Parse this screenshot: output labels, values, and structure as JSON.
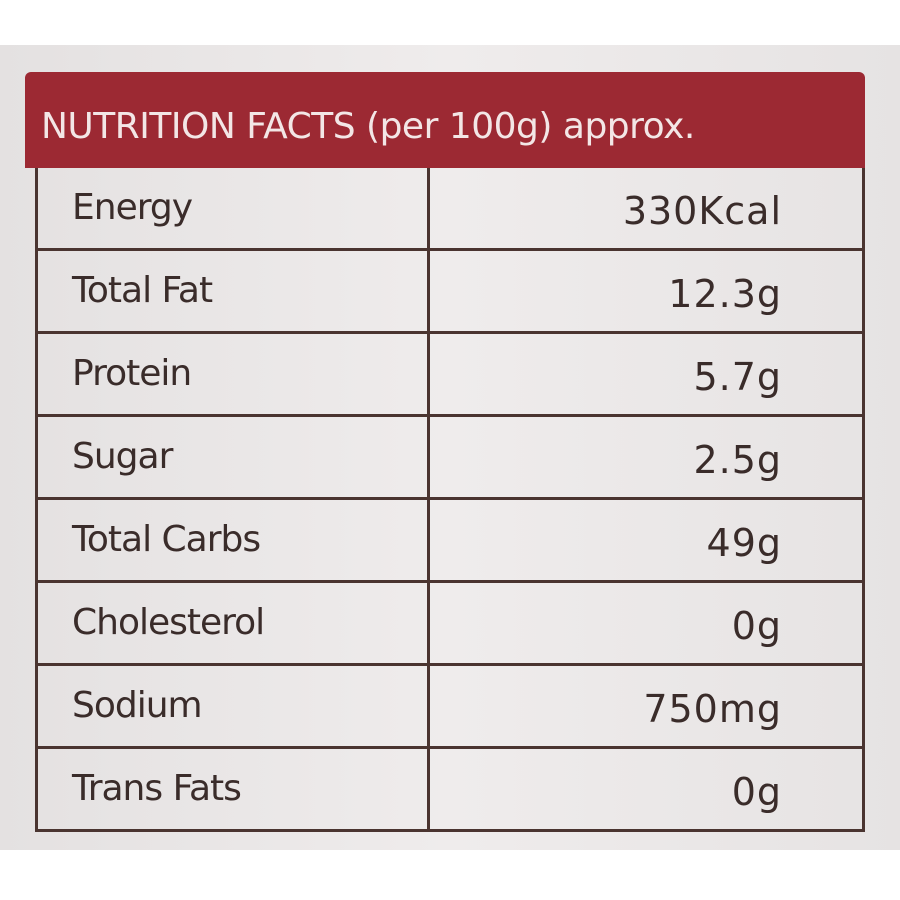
{
  "table": {
    "title": "NUTRITION FACTS (per 100g) approx.",
    "rows": [
      [
        "Energy",
        "330Kcal"
      ],
      [
        "Total Fat",
        "12.3g"
      ],
      [
        "Protein",
        "5.7g"
      ],
      [
        "Sugar",
        "2.5g"
      ],
      [
        "Total Carbs",
        "49g"
      ],
      [
        "Cholesterol",
        "0g"
      ],
      [
        "Sodium",
        "750mg"
      ],
      [
        "Trans Fats",
        "0g"
      ]
    ]
  }
}
